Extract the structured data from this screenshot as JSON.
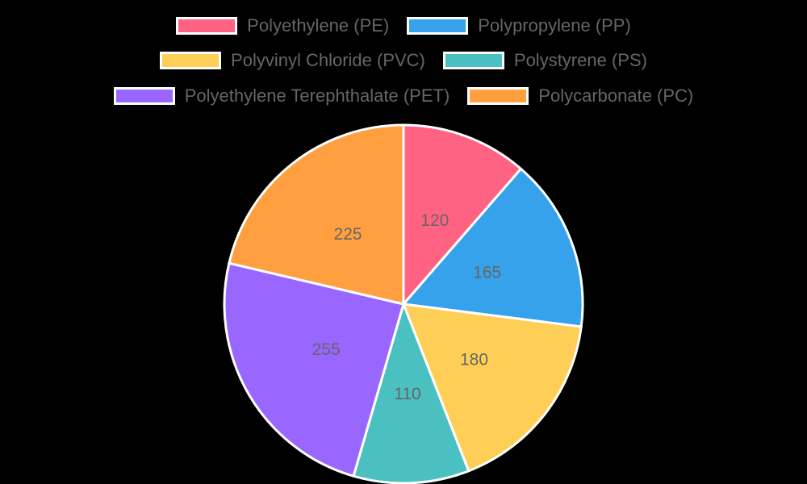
{
  "chart_data": {
    "type": "pie",
    "title": "",
    "categories": [
      "Polyethylene (PE)",
      "Polypropylene (PP)",
      "Polyvinyl Chloride (PVC)",
      "Polystyrene (PS)",
      "Polyethylene Terephthalate (PET)",
      "Polycarbonate (PC)"
    ],
    "values": [
      120,
      165,
      180,
      110,
      255,
      225
    ],
    "colors": [
      "#ff6384",
      "#36a2eb",
      "#ffce56",
      "#4bc0c0",
      "#9966ff",
      "#ff9f40"
    ],
    "legend_position": "top",
    "data_labels": true
  },
  "legend": {
    "items": [
      {
        "label": "Polyethylene (PE)",
        "color": "#ff6384"
      },
      {
        "label": "Polypropylene (PP)",
        "color": "#36a2eb"
      },
      {
        "label": "Polyvinyl Chloride (PVC)",
        "color": "#ffce56"
      },
      {
        "label": "Polystyrene (PS)",
        "color": "#4bc0c0"
      },
      {
        "label": "Polyethylene Terephthalate (PET)",
        "color": "#9966ff"
      },
      {
        "label": "Polycarbonate (PC)",
        "color": "#ff9f40"
      }
    ]
  },
  "labels": [
    "120",
    "165",
    "180",
    "110",
    "255",
    "225"
  ]
}
